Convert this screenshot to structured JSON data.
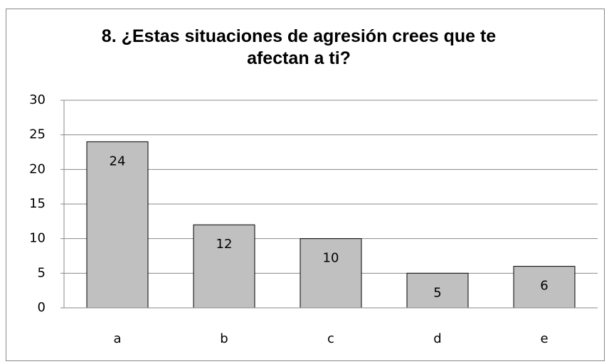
{
  "chart_data": {
    "type": "bar",
    "title": "8. ¿Estas situaciones de agresión crees que te afectan a ti?",
    "categories": [
      "a",
      "b",
      "c",
      "d",
      "e"
    ],
    "values": [
      24,
      12,
      10,
      5,
      6
    ],
    "color": "#c0c0c0",
    "ylim": [
      0,
      30
    ],
    "yticks": [
      0,
      5,
      10,
      15,
      20,
      25,
      30
    ],
    "grid": true
  }
}
